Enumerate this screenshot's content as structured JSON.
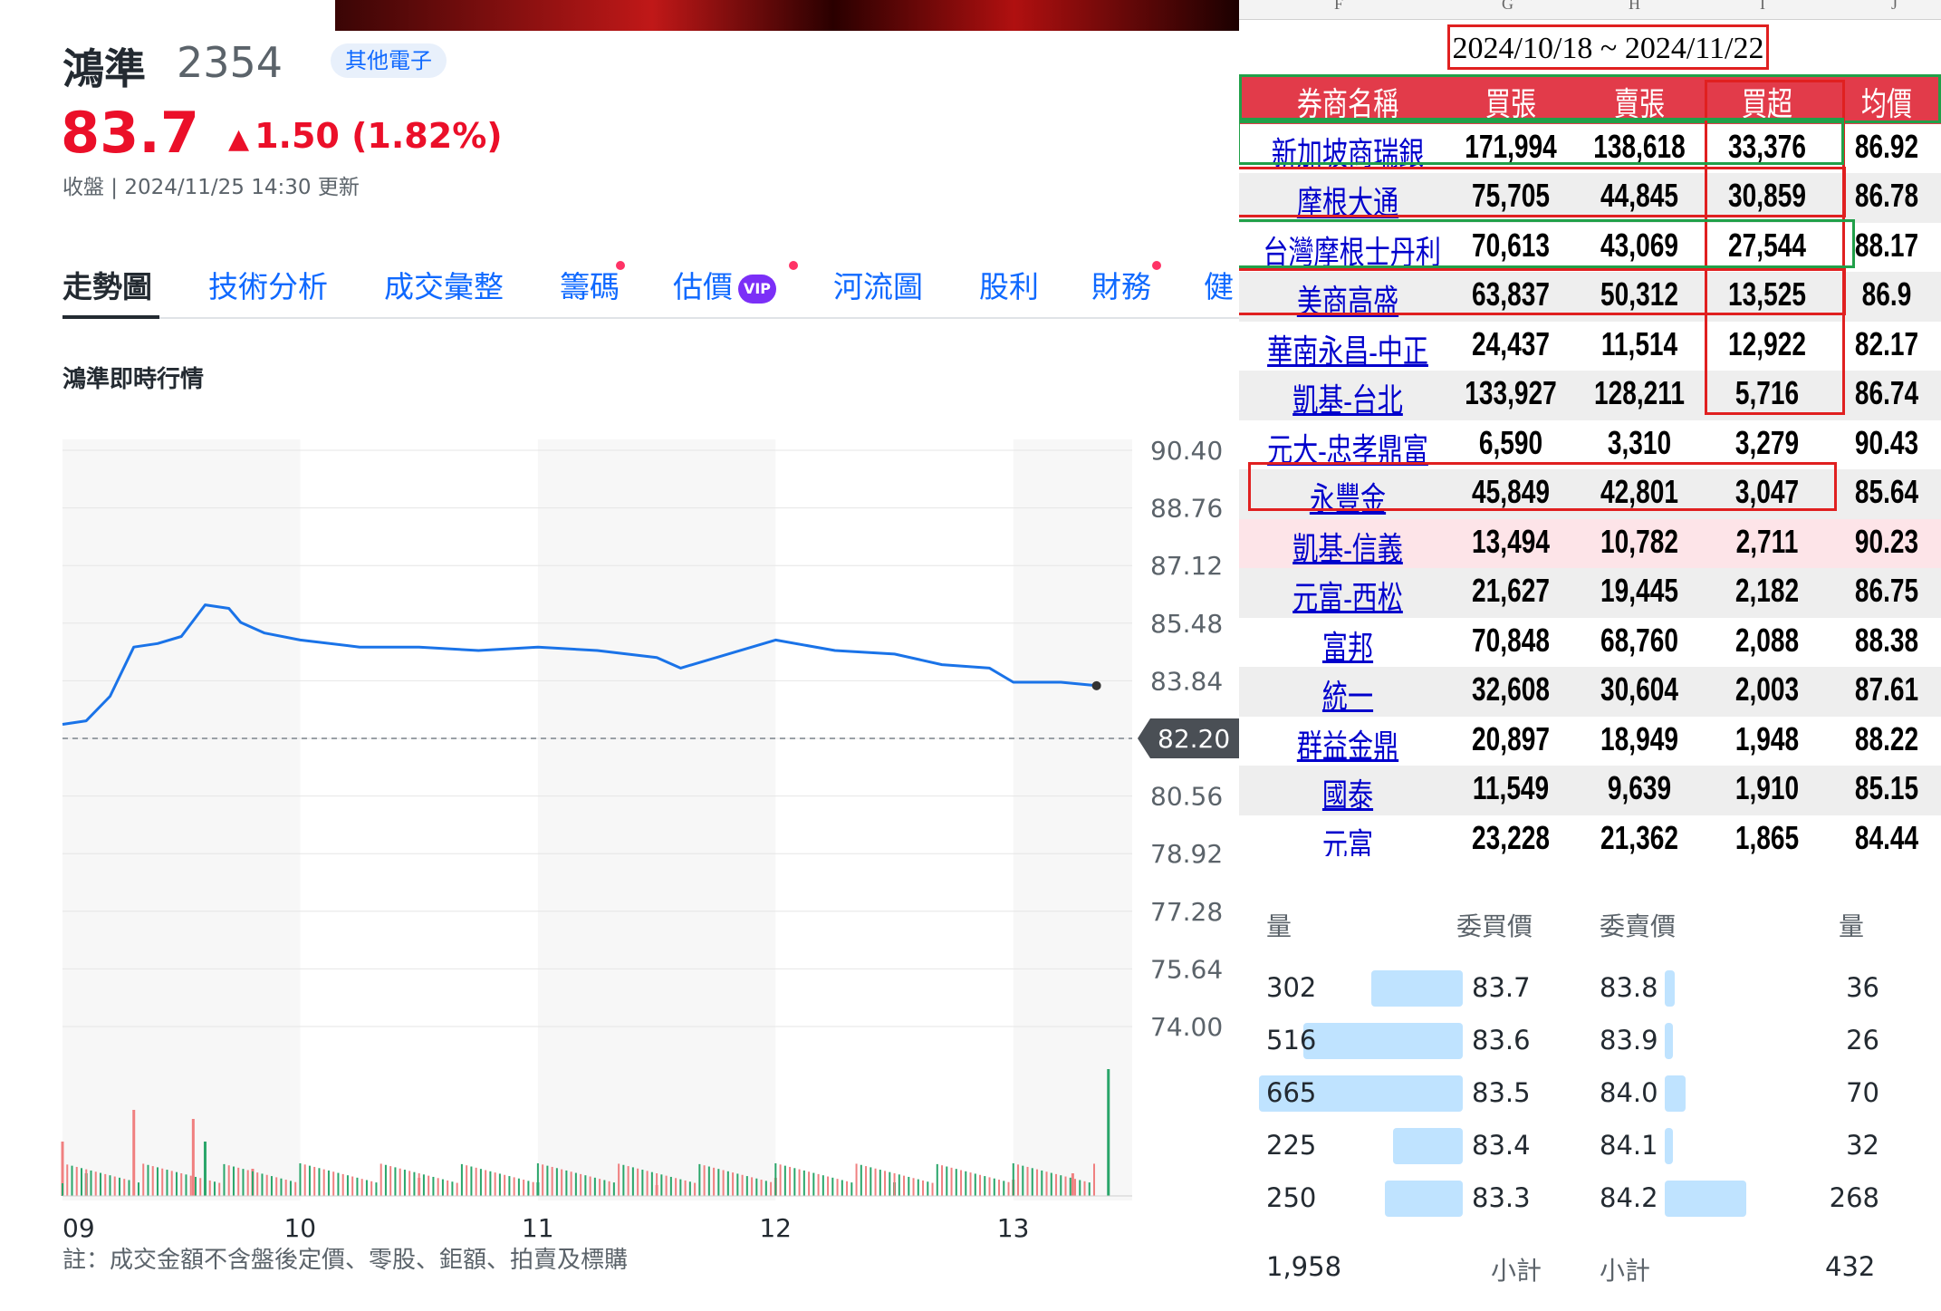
{
  "quote": {
    "name": "鴻準",
    "code": "2354",
    "industry": "其他電子",
    "price": "83.7",
    "change": "1.50 (1.82%)",
    "change_arrow": "▲",
    "status": "收盤 | 2024/11/25 14:30 更新"
  },
  "tabs": [
    {
      "label": "走勢圖",
      "active": true,
      "dot": false,
      "vip": false
    },
    {
      "label": "技術分析",
      "active": false,
      "dot": false,
      "vip": false
    },
    {
      "label": "成交彙整",
      "active": false,
      "dot": false,
      "vip": false
    },
    {
      "label": "籌碼",
      "active": false,
      "dot": true,
      "vip": false
    },
    {
      "label": "估價",
      "active": false,
      "dot": true,
      "vip": true
    },
    {
      "label": "河流圖",
      "active": false,
      "dot": false,
      "vip": false
    },
    {
      "label": "股利",
      "active": false,
      "dot": false,
      "vip": false
    },
    {
      "label": "財務",
      "active": false,
      "dot": true,
      "vip": false
    },
    {
      "label": "健",
      "active": false,
      "dot": false,
      "vip": false
    }
  ],
  "vip_label": "VIP",
  "section_title": "鴻準即時行情",
  "footnote": "註：成交金額不含盤後定價、零股、鉅額、拍賣及標購",
  "chart_data": {
    "type": "line",
    "x_ticks": [
      "09",
      "10",
      "11",
      "12",
      "13"
    ],
    "y_ticks": [
      "90.40",
      "88.76",
      "87.12",
      "85.48",
      "83.84",
      "82.20",
      "80.56",
      "78.92",
      "77.28",
      "75.64",
      "74.00"
    ],
    "ylim": [
      74.0,
      90.4
    ],
    "reference_price": 82.2,
    "reference_label": "82.20",
    "last_price": 83.7,
    "series": [
      {
        "x": [
          9.0,
          9.1,
          9.2,
          9.3,
          9.4,
          9.5,
          9.6,
          9.7,
          9.75,
          9.85,
          10.0,
          10.25,
          10.5,
          10.75,
          11.0,
          11.25,
          11.5,
          11.6,
          11.8,
          12.0,
          12.25,
          12.5,
          12.7,
          12.9,
          13.0,
          13.2,
          13.35
        ],
        "y": [
          82.6,
          82.7,
          83.4,
          84.8,
          84.9,
          85.1,
          86.0,
          85.9,
          85.5,
          85.2,
          85.0,
          84.8,
          84.8,
          84.7,
          84.8,
          84.7,
          84.5,
          84.2,
          84.6,
          85.0,
          84.7,
          84.6,
          84.3,
          84.2,
          83.8,
          83.8,
          83.7
        ]
      }
    ],
    "volume": {
      "x": [
        9.0,
        9.1,
        9.3,
        9.55,
        9.6,
        9.8,
        10.5,
        11.0,
        11.5,
        12.0,
        12.5,
        13.0,
        13.25,
        13.4
      ],
      "values": [
        60,
        25,
        95,
        85,
        60,
        30,
        20,
        15,
        12,
        20,
        15,
        18,
        25,
        140
      ]
    }
  },
  "broker_table": {
    "col_letters": [
      "F",
      "G",
      "H",
      "I",
      "J"
    ],
    "date_range": "2024/10/18 ~ 2024/11/22",
    "headers": [
      "券商名稱",
      "買張",
      "賣張",
      "買超",
      "均價"
    ],
    "rows": [
      [
        "新加坡商瑞銀",
        "171,994",
        "138,618",
        "33,376",
        "86.92"
      ],
      [
        "摩根大通",
        "75,705",
        "44,845",
        "30,859",
        "86.78"
      ],
      [
        "台灣摩根士丹利",
        "70,613",
        "43,069",
        "27,544",
        "88.17"
      ],
      [
        "美商高盛",
        "63,837",
        "50,312",
        "13,525",
        "86.9"
      ],
      [
        "華南永昌-中正",
        "24,437",
        "11,514",
        "12,922",
        "82.17"
      ],
      [
        "凱基-台北",
        "133,927",
        "128,211",
        "5,716",
        "86.74"
      ],
      [
        "元大-忠孝鼎富",
        "6,590",
        "3,310",
        "3,279",
        "90.43"
      ],
      [
        "永豐金",
        "45,849",
        "42,801",
        "3,047",
        "85.64"
      ],
      [
        "凱基-信義",
        "13,494",
        "10,782",
        "2,711",
        "90.23"
      ],
      [
        "元富-西松",
        "21,627",
        "19,445",
        "2,182",
        "86.75"
      ],
      [
        "富邦",
        "70,848",
        "68,760",
        "2,088",
        "88.38"
      ],
      [
        "統一",
        "32,608",
        "30,604",
        "2,003",
        "87.61"
      ],
      [
        "群益金鼎",
        "20,897",
        "18,949",
        "1,948",
        "88.22"
      ],
      [
        "國泰",
        "11,549",
        "9,639",
        "1,910",
        "85.15"
      ],
      [
        "元富",
        "23,228",
        "21,362",
        "1,865",
        "84.44"
      ]
    ],
    "header_color": "#e23b4a",
    "highlight_row_color": "#fde4e8",
    "alt_row_color": "#eeeeee"
  },
  "order_book": {
    "headers": {
      "bid_qty": "量",
      "bid_price": "委買價",
      "ask_price": "委賣價",
      "ask_qty": "量"
    },
    "bids": [
      {
        "qty": "302",
        "price": "83.7",
        "ratio": 0.45
      },
      {
        "qty": "516",
        "price": "83.6",
        "ratio": 0.78
      },
      {
        "qty": "665",
        "price": "83.5",
        "ratio": 1.0
      },
      {
        "qty": "225",
        "price": "83.4",
        "ratio": 0.34
      },
      {
        "qty": "250",
        "price": "83.3",
        "ratio": 0.38
      }
    ],
    "asks": [
      {
        "qty": "36",
        "price": "83.8",
        "ratio": 0.05
      },
      {
        "qty": "26",
        "price": "83.9",
        "ratio": 0.04
      },
      {
        "qty": "70",
        "price": "84.0",
        "ratio": 0.1
      },
      {
        "qty": "32",
        "price": "84.1",
        "ratio": 0.04
      },
      {
        "qty": "268",
        "price": "84.2",
        "ratio": 0.4
      }
    ],
    "totals": {
      "bid_total": "1,958",
      "bid_label": "小計",
      "ask_label": "小計",
      "ask_total": "432"
    }
  }
}
